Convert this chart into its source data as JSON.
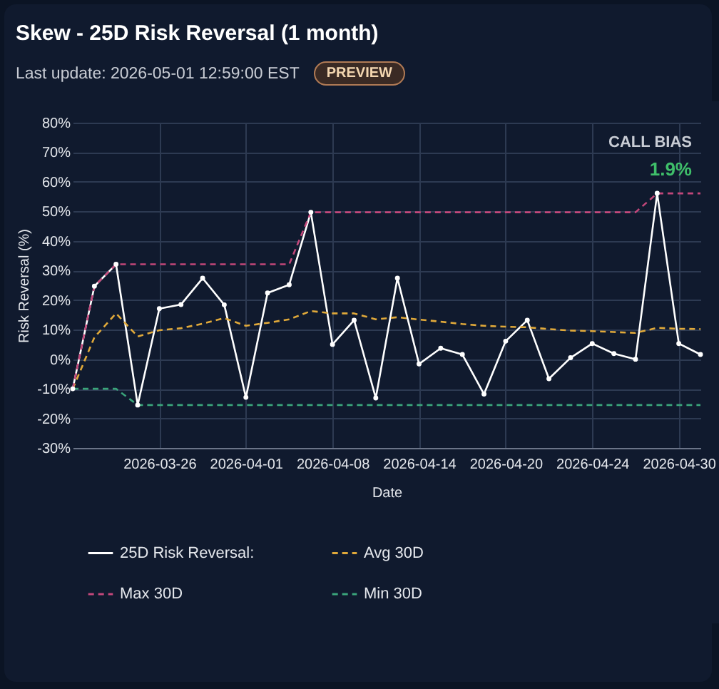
{
  "chart_data": {
    "type": "line",
    "title": "Skew - 25D Risk Reversal (1 month)",
    "subtitle": "Last update: 2026-05-01 12:59:00 EST",
    "xlabel": "Date",
    "ylabel": "Risk Reversal (%)",
    "annotations": [
      "PREVIEW",
      "CALL BIAS",
      "1.9%"
    ],
    "categories": [
      null,
      null,
      null,
      null,
      "2026-03-26",
      null,
      null,
      null,
      "2026-04-01",
      null,
      null,
      null,
      "2026-04-08",
      null,
      null,
      null,
      "2026-04-14",
      null,
      null,
      null,
      "2026-04-20",
      null,
      null,
      null,
      "2026-04-24",
      null,
      null,
      null,
      "2026-04-30",
      null
    ],
    "ylim": [
      -30,
      80
    ],
    "yticks": [
      {
        "value": -30,
        "label": "-30%"
      },
      {
        "value": -20,
        "label": "-20%"
      },
      {
        "value": -10,
        "label": "-10%"
      },
      {
        "value": 0,
        "label": "0%"
      },
      {
        "value": 10,
        "label": "10%"
      },
      {
        "value": 20,
        "label": "20%"
      },
      {
        "value": 30,
        "label": "30%"
      },
      {
        "value": 40,
        "label": "40%"
      },
      {
        "value": 50,
        "label": "50%"
      },
      {
        "value": 60,
        "label": "60%"
      },
      {
        "value": 70,
        "label": "70%"
      },
      {
        "value": 80,
        "label": "80%"
      }
    ],
    "grid": true,
    "legend": "bottom",
    "series": [
      {
        "name": "25D Risk Reversal:",
        "color": "#ffffff",
        "marker": "circle",
        "line_style": "solid",
        "values": [
          -10,
          24.7,
          32.1,
          -15.5,
          17.1,
          18.5,
          27.4,
          18.4,
          -12.9,
          22.4,
          25.2,
          49.7,
          5,
          13.2,
          -13.1,
          27.4,
          -1.6,
          3.7,
          1.6,
          -11.8,
          6.1,
          13.2,
          -6.6,
          0.5,
          5.3,
          1.9,
          0,
          56.1,
          5.3,
          1.6
        ]
      },
      {
        "name": "Avg 30D",
        "color": "#e0a93a",
        "marker": "none",
        "line_style": "dashed",
        "values": [
          -10,
          7.4,
          15.5,
          7.7,
          9.8,
          10.5,
          12,
          13.9,
          11.3,
          12.3,
          13.5,
          16.3,
          15.5,
          15.5,
          13.5,
          14.2,
          13.4,
          12.7,
          11.9,
          11.3,
          11,
          10.8,
          10.2,
          9.7,
          9.5,
          9.2,
          8.9,
          10.6,
          10.3,
          10.2
        ]
      },
      {
        "name": "Max 30D",
        "color": "#c2477a",
        "marker": "none",
        "line_style": "dashed",
        "values": [
          -10,
          24.7,
          32.1,
          32.1,
          32.1,
          32.1,
          32.1,
          32.1,
          32.1,
          32.1,
          32.1,
          49.7,
          49.7,
          49.7,
          49.7,
          49.7,
          49.7,
          49.7,
          49.7,
          49.7,
          49.7,
          49.7,
          49.7,
          49.7,
          49.7,
          49.7,
          49.7,
          56.1,
          56.1,
          56.1
        ]
      },
      {
        "name": "Min 30D",
        "color": "#3aa37a",
        "marker": "none",
        "line_style": "dashed",
        "values": [
          -10,
          -10,
          -10,
          -15.5,
          -15.5,
          -15.5,
          -15.5,
          -15.5,
          -15.5,
          -15.5,
          -15.5,
          -15.5,
          -15.5,
          -15.5,
          -15.5,
          -15.5,
          -15.5,
          -15.5,
          -15.5,
          -15.5,
          -15.5,
          -15.5,
          -15.5,
          -15.5,
          -15.5,
          -15.5,
          -15.5,
          -15.5,
          -15.5,
          -15.5
        ]
      }
    ]
  }
}
